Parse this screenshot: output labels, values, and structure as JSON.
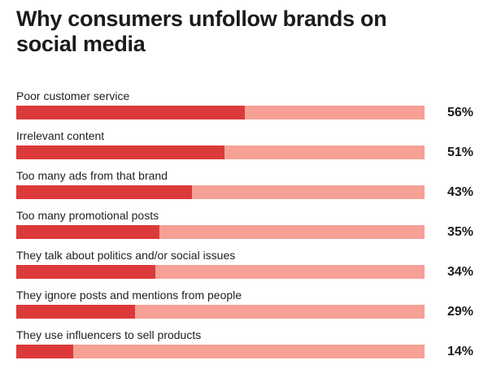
{
  "chart_data": {
    "type": "bar",
    "title": "Why consumers unfollow brands on social media",
    "categories": [
      "Poor customer service",
      "Irrelevant content",
      "Too many ads from that brand",
      "Too many promotional posts",
      "They talk about politics and/or social issues",
      "They ignore posts and mentions from people",
      "They use influencers to sell products"
    ],
    "values": [
      56,
      51,
      43,
      35,
      34,
      29,
      14
    ],
    "value_labels": [
      "56%",
      "51%",
      "43%",
      "35%",
      "34%",
      "29%",
      "14%"
    ],
    "unit": "%",
    "xlim": [
      0,
      100
    ],
    "orientation": "horizontal",
    "grid": false,
    "colors": {
      "fill": "#dc3a3a",
      "track": "#f6a096"
    }
  }
}
